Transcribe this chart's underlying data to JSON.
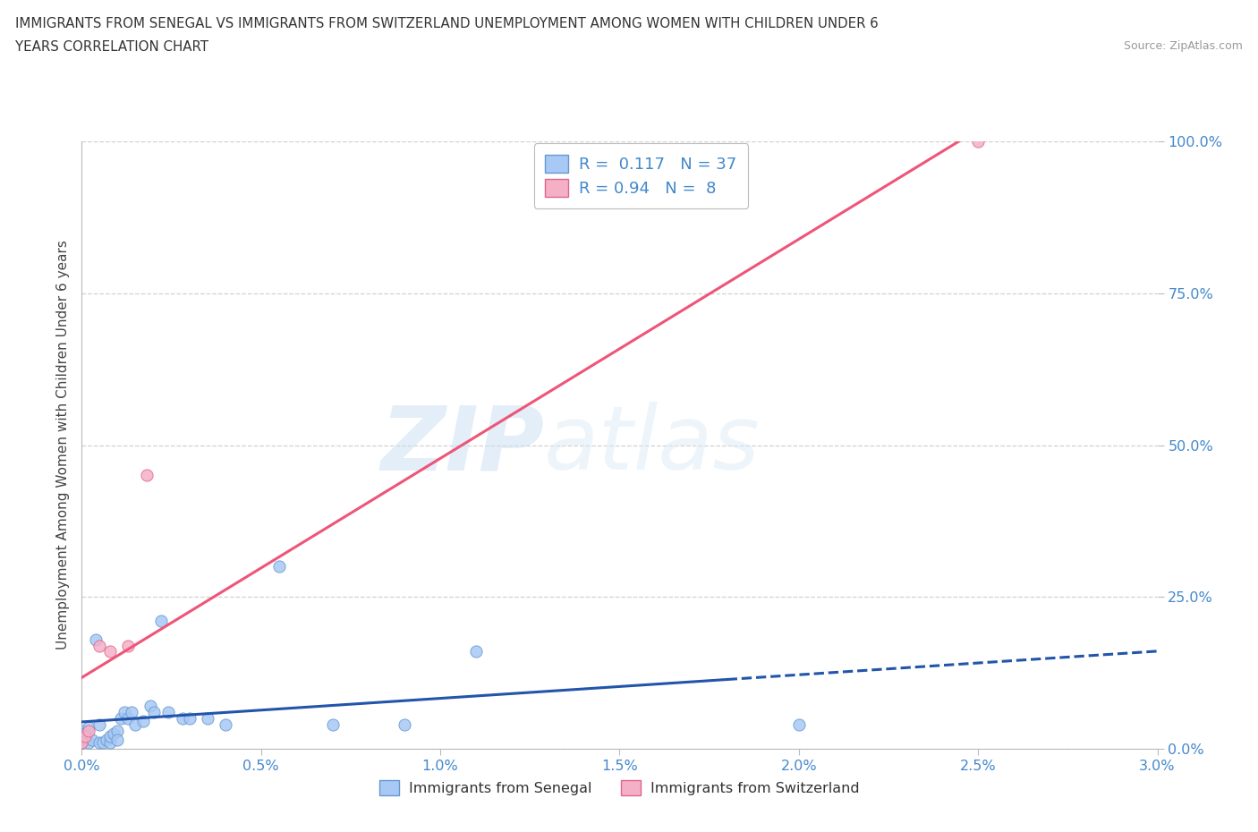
{
  "title_line1": "IMMIGRANTS FROM SENEGAL VS IMMIGRANTS FROM SWITZERLAND UNEMPLOYMENT AMONG WOMEN WITH CHILDREN UNDER 6",
  "title_line2": "YEARS CORRELATION CHART",
  "source": "Source: ZipAtlas.com",
  "ylabel_label": "Unemployment Among Women with Children Under 6 years",
  "senegal_x": [
    0.0,
    0.0,
    0.0,
    0.01,
    0.01,
    0.02,
    0.02,
    0.03,
    0.04,
    0.05,
    0.05,
    0.06,
    0.07,
    0.08,
    0.08,
    0.09,
    0.1,
    0.1,
    0.11,
    0.12,
    0.13,
    0.14,
    0.15,
    0.17,
    0.19,
    0.2,
    0.22,
    0.24,
    0.28,
    0.3,
    0.35,
    0.4,
    0.55,
    0.7,
    0.9,
    1.1,
    2.0
  ],
  "senegal_y": [
    1.0,
    2.0,
    3.0,
    1.5,
    2.5,
    1.0,
    3.5,
    1.5,
    18.0,
    1.0,
    4.0,
    1.0,
    1.5,
    1.0,
    2.0,
    2.5,
    3.0,
    1.5,
    5.0,
    6.0,
    5.0,
    6.0,
    4.0,
    4.5,
    7.0,
    6.0,
    21.0,
    6.0,
    5.0,
    5.0,
    5.0,
    4.0,
    30.0,
    4.0,
    4.0,
    16.0,
    4.0
  ],
  "switzerland_x": [
    0.0,
    0.01,
    0.02,
    0.05,
    0.08,
    0.13,
    0.18,
    2.5
  ],
  "switzerland_y": [
    1.0,
    2.0,
    3.0,
    17.0,
    16.0,
    17.0,
    45.0,
    100.0
  ],
  "senegal_color": "#a8c8f5",
  "senegal_edge": "#6699cc",
  "switzerland_color": "#f5b0c8",
  "switzerland_edge": "#dd6688",
  "senegal_line_color": "#2255aa",
  "switzerland_line_color": "#ee5577",
  "senegal_R": 0.117,
  "senegal_N": 37,
  "switzerland_R": 0.94,
  "switzerland_N": 8,
  "watermark_zip": "ZIP",
  "watermark_atlas": "atlas",
  "background_color": "#ffffff",
  "xlim": [
    0.0,
    3.0
  ],
  "ylim": [
    0.0,
    100.0
  ],
  "xtick_vals": [
    0.0,
    0.5,
    1.0,
    1.5,
    2.0,
    2.5,
    3.0
  ],
  "ytick_vals": [
    0.0,
    25.0,
    50.0,
    75.0,
    100.0
  ],
  "tick_color": "#4488cc",
  "grid_color": "#cccccc",
  "spine_color": "#bbbbbb"
}
